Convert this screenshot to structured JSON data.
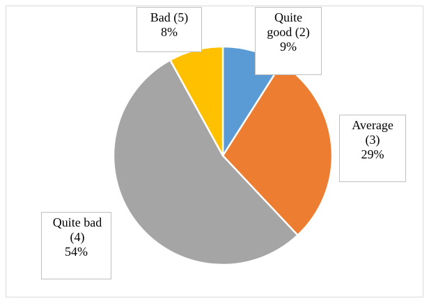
{
  "chart_data": {
    "type": "pie",
    "categories": [
      "Quite good (2)",
      "Average (3)",
      "Quite bad (4)",
      "Bad (5)"
    ],
    "values": [
      9,
      29,
      54,
      8
    ],
    "value_labels": [
      "9%",
      "29%",
      "54%",
      "8%"
    ],
    "colors": [
      "#5b9bd5",
      "#ed7d31",
      "#a5a5a5",
      "#ffc000"
    ]
  }
}
